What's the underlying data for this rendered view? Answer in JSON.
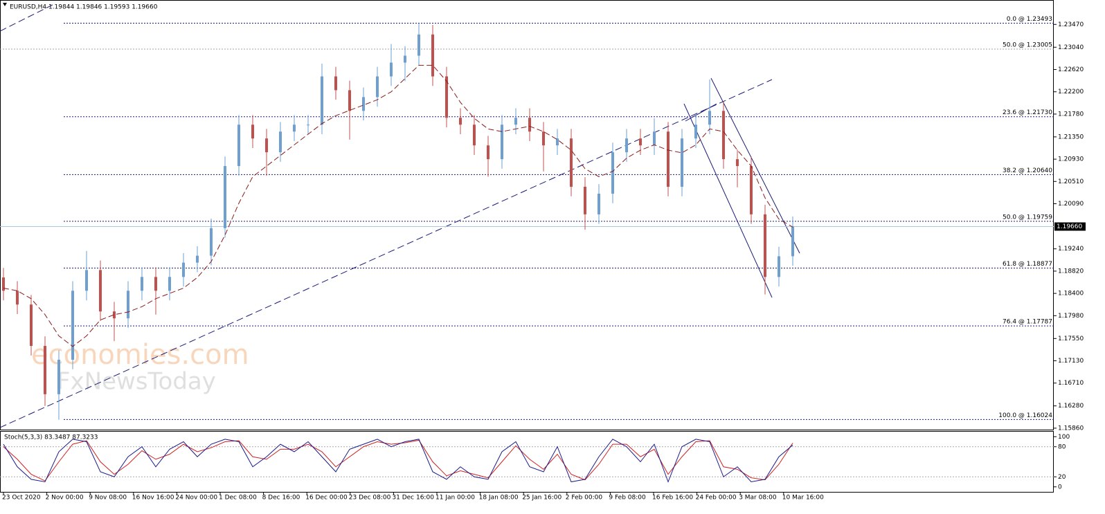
{
  "chart_data": {
    "type": "candlestick",
    "title": "EURUSD,H4  1.19844 1.19846 1.19593 1.19660",
    "categories": [
      "23 Oct 2020",
      "2 Nov 00:00",
      "9 Nov 08:00",
      "16 Nov 16:00",
      "24 Nov 00:00",
      "1 Dec 08:00",
      "8 Dec 16:00",
      "16 Dec 00:00",
      "23 Dec 08:00",
      "31 Dec 16:00",
      "11 Jan 00:00",
      "18 Jan 08:00",
      "25 Jan 16:00",
      "2 Feb 00:00",
      "9 Feb 08:00",
      "16 Feb 16:00",
      "24 Feb 00:00",
      "3 Mar 08:00",
      "10 Mar 16:00"
    ],
    "up_color": "#6d9fd0",
    "down_color": "#c0504d",
    "open": [
      1.187,
      1.1845,
      1.1819,
      1.1741,
      1.165,
      1.1715,
      1.1845,
      1.1884,
      1.1806,
      1.1793,
      1.1845,
      1.1871,
      1.1845,
      1.1871,
      1.1898,
      1.1911,
      1.1963,
      1.208,
      1.2158,
      1.2132,
      1.2106,
      1.2145,
      1.2158,
      1.2158,
      1.2249,
      1.2223,
      1.2184,
      1.221,
      1.2249,
      1.2275,
      1.2288,
      1.2328,
      1.2249,
      1.2171,
      1.2158,
      1.2119,
      1.2093,
      1.2158,
      1.2171,
      1.2145,
      1.2119,
      1.2132,
      1.2041,
      1.1989,
      1.2028,
      1.2106,
      1.2132,
      1.2119,
      1.2145,
      1.2041,
      1.2132,
      1.2158,
      1.2184,
      1.2093,
      1.208,
      1.1989,
      1.1871,
      1.191
    ],
    "high": [
      1.1888,
      1.1863,
      1.1837,
      1.1759,
      1.1733,
      1.1863,
      1.192,
      1.1902,
      1.1824,
      1.1863,
      1.1889,
      1.1889,
      1.1889,
      1.1916,
      1.1929,
      1.1981,
      1.2098,
      1.2176,
      1.2176,
      1.215,
      1.2163,
      1.2176,
      1.2176,
      1.2273,
      1.2267,
      1.2241,
      1.2228,
      1.2267,
      1.231,
      1.2306,
      1.2349,
      1.2346,
      1.2267,
      1.2189,
      1.2176,
      1.2137,
      1.2176,
      1.2189,
      1.2189,
      1.2163,
      1.215,
      1.215,
      1.2059,
      1.2046,
      1.2124,
      1.215,
      1.215,
      1.217,
      1.2163,
      1.215,
      1.2176,
      1.2243,
      1.2202,
      1.2111,
      1.2098,
      1.2007,
      1.1928,
      1.1985
    ],
    "low": [
      1.1827,
      1.1801,
      1.1723,
      1.1628,
      1.1602,
      1.1697,
      1.1827,
      1.1788,
      1.175,
      1.1775,
      1.1827,
      1.18,
      1.1827,
      1.1853,
      1.188,
      1.1893,
      1.1945,
      1.2062,
      1.2114,
      1.2062,
      1.2088,
      1.2127,
      1.214,
      1.214,
      1.2205,
      1.213,
      1.2166,
      1.2192,
      1.2231,
      1.224,
      1.227,
      1.2231,
      1.2153,
      1.214,
      1.2101,
      1.206,
      1.2075,
      1.214,
      1.2127,
      1.207,
      1.2101,
      1.2023,
      1.196,
      1.1971,
      1.201,
      1.2088,
      1.2101,
      1.2101,
      1.2023,
      1.2023,
      1.2114,
      1.214,
      1.2075,
      1.204,
      1.1971,
      1.1838,
      1.1853,
      1.1892
    ],
    "close": [
      1.1845,
      1.1819,
      1.1741,
      1.165,
      1.1715,
      1.1845,
      1.1884,
      1.1806,
      1.1793,
      1.1845,
      1.1871,
      1.1845,
      1.1871,
      1.1898,
      1.1911,
      1.1963,
      1.208,
      1.2158,
      1.2132,
      1.2106,
      1.2145,
      1.2158,
      1.2158,
      1.2249,
      1.2223,
      1.2184,
      1.221,
      1.2249,
      1.2275,
      1.2288,
      1.2328,
      1.2249,
      1.2171,
      1.2158,
      1.2119,
      1.2093,
      1.2158,
      1.2171,
      1.2145,
      1.2119,
      1.2132,
      1.2041,
      1.1989,
      1.2028,
      1.2106,
      1.2132,
      1.2119,
      1.2145,
      1.2041,
      1.2132,
      1.2158,
      1.2184,
      1.2093,
      1.208,
      1.1989,
      1.1871,
      1.191,
      1.1966
    ],
    "moving_average": {
      "color": "#8b1a1a",
      "values": [
        1.185,
        1.1845,
        1.183,
        1.18,
        1.176,
        1.174,
        1.176,
        1.179,
        1.18,
        1.1805,
        1.1815,
        1.183,
        1.184,
        1.185,
        1.187,
        1.19,
        1.195,
        1.201,
        1.206,
        1.208,
        1.21,
        1.212,
        1.214,
        1.216,
        1.2175,
        1.2185,
        1.2195,
        1.2205,
        1.222,
        1.2245,
        1.227,
        1.227,
        1.224,
        1.22,
        1.217,
        1.215,
        1.2145,
        1.215,
        1.2155,
        1.2145,
        1.213,
        1.211,
        1.2075,
        1.206,
        1.207,
        1.2095,
        1.211,
        1.212,
        1.211,
        1.2105,
        1.212,
        1.215,
        1.2145,
        1.211,
        1.208,
        1.202,
        1.198,
        1.1965
      ]
    },
    "ylim": [
      1.1582,
      1.2393
    ],
    "yticks": [
      {
        "value": 1.2347,
        "label": "1.23470"
      },
      {
        "value": 1.2304,
        "label": "1.23040"
      },
      {
        "value": 1.2262,
        "label": "1.22620"
      },
      {
        "value": 1.222,
        "label": "1.22200"
      },
      {
        "value": 1.2178,
        "label": "1.21780"
      },
      {
        "value": 1.2135,
        "label": "1.21350"
      },
      {
        "value": 1.2093,
        "label": "1.20930"
      },
      {
        "value": 1.2051,
        "label": "1.20510"
      },
      {
        "value": 1.2009,
        "label": "1.20090"
      },
      {
        "value": 1.1924,
        "label": "1.19240"
      },
      {
        "value": 1.1882,
        "label": "1.18820"
      },
      {
        "value": 1.184,
        "label": "1.18400"
      },
      {
        "value": 1.1798,
        "label": "1.17980"
      },
      {
        "value": 1.1755,
        "label": "1.17550"
      },
      {
        "value": 1.1713,
        "label": "1.17130"
      },
      {
        "value": 1.1671,
        "label": "1.16710"
      },
      {
        "value": 1.1628,
        "label": "1.16280"
      },
      {
        "value": 1.1586,
        "label": "1.15860"
      }
    ],
    "current_price": {
      "value": 1.1966,
      "label": "1.19660"
    },
    "fib_levels": [
      {
        "value": 1.23493,
        "label": "0.0 @ 1.23493",
        "color": "#1a1a7a"
      },
      {
        "value": 1.23005,
        "label": "50.0 @ 1.23005",
        "color": "#a0a0a0"
      },
      {
        "value": 1.2173,
        "label": "23.6 @ 1.21730",
        "color": "#1a1a7a"
      },
      {
        "value": 1.2064,
        "label": "38.2 @ 1.20640",
        "color": "#1a1a7a"
      },
      {
        "value": 1.19759,
        "label": "50.0 @ 1.19759",
        "color": "#1a1a7a"
      },
      {
        "value": 1.18877,
        "label": "61.8 @ 1.18877",
        "color": "#1a1a7a"
      },
      {
        "value": 1.17787,
        "label": "76.4 @ 1.17787",
        "color": "#1a1a7a"
      },
      {
        "value": 1.16024,
        "label": "100.0 @ 1.16024",
        "color": "#1a1a7a"
      }
    ],
    "watermark": [
      "economies.com",
      "FxNewsToday"
    ],
    "stochastic": {
      "title": "Stoch(5,3,3) 83.3487 87.3233",
      "ylim": [
        -10,
        110
      ],
      "yticks": [
        100,
        80,
        20,
        0
      ],
      "levels": [
        80,
        20
      ],
      "series": [
        {
          "color": "#1a1a8c",
          "values": [
            85,
            40,
            15,
            10,
            70,
            95,
            90,
            30,
            20,
            60,
            80,
            40,
            75,
            90,
            60,
            85,
            95,
            90,
            40,
            60,
            85,
            70,
            90,
            60,
            30,
            75,
            85,
            95,
            80,
            90,
            95,
            30,
            15,
            40,
            20,
            15,
            70,
            90,
            40,
            30,
            80,
            10,
            15,
            60,
            95,
            80,
            50,
            85,
            10,
            80,
            95,
            90,
            20,
            40,
            10,
            15,
            60,
            83.3487
          ]
        },
        {
          "color": "#d02020",
          "values": [
            80,
            55,
            25,
            12,
            50,
            85,
            92,
            50,
            25,
            45,
            72,
            55,
            65,
            85,
            70,
            78,
            90,
            92,
            60,
            55,
            75,
            75,
            85,
            70,
            40,
            60,
            80,
            90,
            85,
            88,
            93,
            50,
            22,
            32,
            25,
            18,
            50,
            82,
            55,
            35,
            65,
            25,
            14,
            45,
            85,
            85,
            60,
            75,
            25,
            60,
            90,
            92,
            40,
            35,
            18,
            14,
            45,
            87.3233
          ]
        }
      ]
    }
  }
}
